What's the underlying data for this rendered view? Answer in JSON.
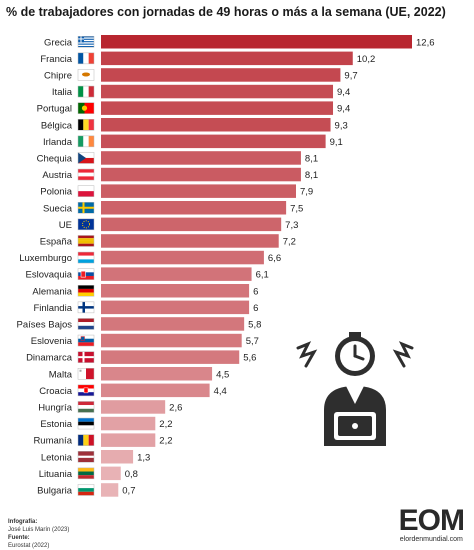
{
  "title": "% de trabajadores con jornadas de 49 horas o más a la semana (UE, 2022)",
  "colors": {
    "bar_dark": "#b8262f",
    "bar_light": "#e8b3b6",
    "icon": "#2e2e2e"
  },
  "chart_data": {
    "type": "bar",
    "orientation": "horizontal",
    "title": "% de trabajadores con jornadas de 49 horas o más a la semana (UE, 2022)",
    "xlim": [
      0,
      13
    ],
    "categories": [
      "Grecia",
      "Francia",
      "Chipre",
      "Italia",
      "Portugal",
      "Bélgica",
      "Irlanda",
      "Chequia",
      "Austria",
      "Polonia",
      "Suecia",
      "UE",
      "España",
      "Luxemburgo",
      "Eslovaquia",
      "Alemania",
      "Finlandia",
      "Países Bajos",
      "Eslovenia",
      "Dinamarca",
      "Malta",
      "Croacia",
      "Hungría",
      "Estonia",
      "Rumanía",
      "Letonia",
      "Lituania",
      "Bulgaria"
    ],
    "values": [
      12.6,
      10.2,
      9.7,
      9.4,
      9.4,
      9.3,
      9.1,
      8.1,
      8.1,
      7.9,
      7.5,
      7.3,
      7.2,
      6.6,
      6.1,
      6,
      6,
      5.8,
      5.7,
      5.6,
      4.5,
      4.4,
      2.6,
      2.2,
      2.2,
      1.3,
      0.8,
      0.7
    ],
    "value_labels": [
      "12,6",
      "10,2",
      "9,7",
      "9,4",
      "9,4",
      "9,3",
      "9,1",
      "8,1",
      "8,1",
      "7,9",
      "7,5",
      "7,3",
      "7,2",
      "6,6",
      "6,1",
      "6",
      "6",
      "5,8",
      "5,7",
      "5,6",
      "4,5",
      "4,4",
      "2,6",
      "2,2",
      "2,2",
      "1,3",
      "0,8",
      "0,7"
    ],
    "flags": [
      "greece",
      "france",
      "cyprus",
      "italy",
      "portugal",
      "belgium",
      "ireland",
      "czechia",
      "austria",
      "poland",
      "sweden",
      "eu",
      "spain",
      "luxembourg",
      "slovakia",
      "germany",
      "finland",
      "netherlands",
      "slovenia",
      "denmark",
      "malta",
      "croatia",
      "hungary",
      "estonia",
      "romania",
      "latvia",
      "lithuania",
      "bulgaria"
    ]
  },
  "credits": {
    "infografia_label": "Infografía:",
    "infografia": "José Luis Marín (2023)",
    "fuente_label": "Fuente:",
    "fuente": "Eurostat (2022)"
  },
  "brand": {
    "logo": "EOM",
    "site": "elordenmundial.com"
  },
  "illustration": "overworked-worker-with-clock-icon"
}
